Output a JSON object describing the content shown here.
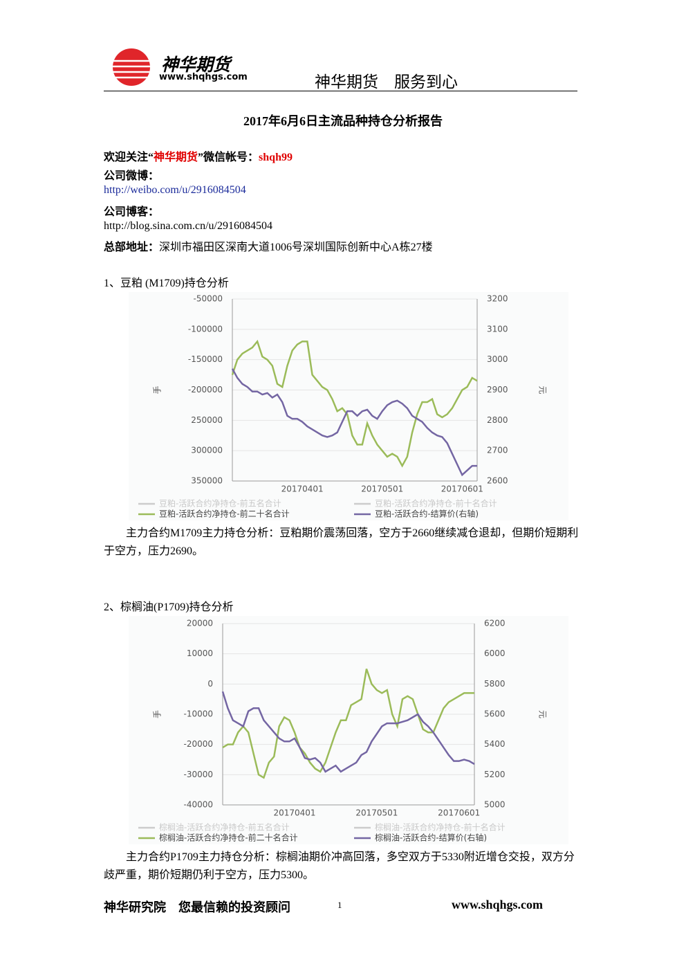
{
  "header": {
    "logo_name": "神华期货",
    "logo_url": "www.shqhgs.com",
    "slogan": "神华期货　服务到心"
  },
  "title": "2017年6月6日主流品种持仓分析报告",
  "contact": {
    "wechat_prefix": "欢迎关注“",
    "wechat_name": "神华期货",
    "wechat_mid": "”微信帐号：",
    "wechat_id": "shqh99",
    "weibo_label": "公司微博：",
    "weibo_url": "http://weibo.com/u/2916084504",
    "blog_label": "公司博客：",
    "blog_url": "http://blog.sina.com.cn/u/2916084504",
    "address_label": "总部地址：",
    "address": "深圳市福田区深南大道1006号深圳国际创新中心A栋27楼"
  },
  "sections": [
    {
      "heading": "1、豆粕 (M1709)持仓分析",
      "chart": {
        "type": "line",
        "y_label": "手",
        "y2_label": "元",
        "categories": [
          null,
          null,
          null,
          null,
          null,
          null,
          null,
          null,
          null,
          null,
          null,
          null,
          null,
          null,
          "20170401",
          null,
          null,
          null,
          null,
          null,
          null,
          null,
          null,
          null,
          null,
          null,
          null,
          null,
          null,
          null,
          "20170501",
          null,
          null,
          null,
          null,
          null,
          null,
          null,
          null,
          null,
          null,
          null,
          null,
          null,
          null,
          null,
          "20170601",
          null,
          null,
          null
        ],
        "ylim": [
          -350000,
          -50000
        ],
        "yticks": [
          -50000,
          -100000,
          -150000,
          -200000,
          {
            "value": -250000,
            "label": "250000"
          },
          {
            "value": -300000,
            "label": "300000"
          },
          {
            "value": -350000,
            "label": "350000"
          }
        ],
        "y2lim": [
          2600,
          3200
        ],
        "y2ticks": [
          3200,
          3100,
          3000,
          2900,
          2800,
          2700,
          2600
        ],
        "grid": true,
        "series": [
          {
            "name": "豆粕-活跃合约净持仓-前五名合计",
            "color": "#cccccc"
          },
          {
            "name": "豆粕-活跃合约净持仓-前十名合计",
            "color": "#cccccc"
          },
          {
            "name": "豆粕-活跃合约净持仓-前二十名合计",
            "color": "#9bbb59",
            "values": [
              -175000,
              -150000,
              -140000,
              -135000,
              -130000,
              -120000,
              -145000,
              -150000,
              -160000,
              -190000,
              -195000,
              -160000,
              -135000,
              -125000,
              -120000,
              -120000,
              -175000,
              -185000,
              -195000,
              -200000,
              -215000,
              -235000,
              -230000,
              -240000,
              -275000,
              -290000,
              -290000,
              -255000,
              -275000,
              -290000,
              -300000,
              -310000,
              -305000,
              -310000,
              -325000,
              -310000,
              -270000,
              -240000,
              -220000,
              -220000,
              -215000,
              -240000,
              -245000,
              -240000,
              -230000,
              -215000,
              -200000,
              -195000,
              -180000,
              -185000
            ]
          },
          {
            "name": "豆粕-活跃合约-结算价(右轴)",
            "color": "#7466a3",
            "axis": "y2",
            "values": [
              2970,
              2940,
              2920,
              2910,
              2895,
              2895,
              2885,
              2890,
              2875,
              2885,
              2860,
              2815,
              2805,
              2805,
              2795,
              2780,
              2770,
              2760,
              2750,
              2745,
              2750,
              2760,
              2795,
              2830,
              2830,
              2815,
              2830,
              2835,
              2815,
              2805,
              2830,
              2850,
              2860,
              2865,
              2855,
              2840,
              2815,
              2805,
              2795,
              2775,
              2760,
              2750,
              2745,
              2725,
              2690,
              2655,
              2620,
              2635,
              2650,
              2650
            ]
          }
        ]
      },
      "analysis": "主力合约M1709主力持仓分析：豆粕期价震荡回落，空方于2660继续减仓退却，但期价短期利于空方，压力2690。"
    },
    {
      "heading": "2、棕榈油(P1709)持仓分析",
      "chart": {
        "type": "line",
        "y_label": "手",
        "y2_label": "元",
        "categories": [
          null,
          null,
          null,
          null,
          null,
          null,
          null,
          null,
          null,
          null,
          null,
          null,
          null,
          null,
          "20170401",
          null,
          null,
          null,
          null,
          null,
          null,
          null,
          null,
          null,
          null,
          null,
          null,
          null,
          null,
          null,
          "20170501",
          null,
          null,
          null,
          null,
          null,
          null,
          null,
          null,
          null,
          null,
          null,
          null,
          null,
          null,
          null,
          "20170601",
          null,
          null,
          null
        ],
        "ylim": [
          -40000,
          20000
        ],
        "yticks": [
          20000,
          10000,
          0,
          -10000,
          -20000,
          -30000,
          -40000
        ],
        "y2lim": [
          5000,
          6200
        ],
        "y2ticks": [
          6200,
          6000,
          5800,
          5600,
          5400,
          5200,
          5000
        ],
        "grid": true,
        "series": [
          {
            "name": "棕榈油-活跃合约净持仓-前五名合计",
            "color": "#cccccc"
          },
          {
            "name": "棕榈油-活跃合约净持仓-前十名合计",
            "color": "#cccccc"
          },
          {
            "name": "棕榈油-活跃合约净持仓-前二十名合计",
            "color": "#9bbb59",
            "values": [
              -21000,
              -20000,
              -20000,
              -16000,
              -14000,
              -16000,
              -23000,
              -30000,
              -31000,
              -26000,
              -24000,
              -14000,
              -11000,
              -12000,
              -16000,
              -21000,
              -23000,
              -26000,
              -28000,
              -29000,
              -26000,
              -21000,
              -16000,
              -12000,
              -12000,
              -7000,
              -6000,
              -5000,
              5000,
              0,
              -2000,
              -3000,
              -2000,
              -10000,
              -14000,
              -5000,
              -4000,
              -5000,
              -10000,
              -15000,
              -16000,
              -16000,
              -12000,
              -8000,
              -6000,
              -5000,
              -4000,
              -3000,
              -3000,
              -3000
            ]
          },
          {
            "name": "棕榈油-活跃合约-结算价(右轴)",
            "color": "#7466a3",
            "axis": "y2",
            "values": [
              5750,
              5640,
              5560,
              5540,
              5520,
              5620,
              5640,
              5640,
              5560,
              5520,
              5480,
              5440,
              5420,
              5420,
              5440,
              5380,
              5310,
              5300,
              5310,
              5280,
              5220,
              5240,
              5260,
              5220,
              5240,
              5260,
              5280,
              5330,
              5350,
              5420,
              5470,
              5520,
              5540,
              5540,
              5540,
              5550,
              5560,
              5580,
              5600,
              5550,
              5520,
              5480,
              5430,
              5380,
              5330,
              5290,
              5290,
              5300,
              5290,
              5270
            ]
          }
        ]
      },
      "analysis": "主力合约P1709主力持仓分析：棕榈油期价冲高回落，多空双方于5330附近增仓交投，双方分歧严重，期价短期仍利于空方，压力5300。"
    }
  ],
  "footer": {
    "left": "神华研究院　您最信赖的投资顾问",
    "page": "1",
    "site": "www.shqhgs.com"
  }
}
